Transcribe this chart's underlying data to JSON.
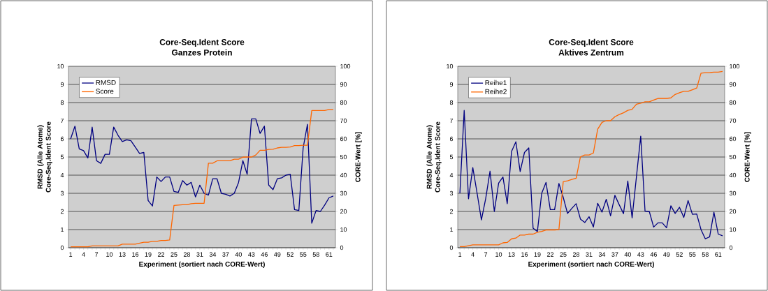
{
  "chart_data": [
    {
      "type": "line",
      "title": "Core-Seq.Ident Score",
      "subtitle": "Ganzes Protein",
      "xlabel": "Experiment (sortiert nach CORE-Wert)",
      "ylabel": "RMSD (Alle Atome) Core-Seq.Ident Score",
      "y2label": "CORE-Wert [%]",
      "categories": [
        "1",
        null,
        null,
        "4",
        null,
        null,
        "7",
        null,
        null,
        "10",
        null,
        null,
        "13",
        null,
        null,
        "16",
        null,
        null,
        "19",
        null,
        null,
        "22",
        null,
        null,
        "25",
        null,
        null,
        "28",
        null,
        null,
        "31",
        null,
        null,
        "34",
        null,
        null,
        "37",
        null,
        null,
        "40",
        null,
        null,
        "43",
        null,
        null,
        "46",
        null,
        null,
        "49",
        null,
        null,
        "52",
        null,
        null,
        "55",
        null,
        null,
        "58",
        null,
        null,
        "61",
        null
      ],
      "ylim": [
        0,
        10
      ],
      "yticks": [
        0,
        1,
        2,
        3,
        4,
        5,
        6,
        7,
        8,
        9,
        10
      ],
      "y2lim": [
        0,
        100
      ],
      "y2ticks": [
        0,
        10,
        20,
        30,
        40,
        50,
        60,
        70,
        80,
        90,
        100
      ],
      "grid": "y",
      "legend": "top left",
      "marker": "none",
      "line_style": "solid",
      "series": [
        {
          "name": "RMSD",
          "color": "#000080",
          "values": [
            6.0,
            6.7,
            5.45,
            5.35,
            4.95,
            6.65,
            4.8,
            4.65,
            5.15,
            5.15,
            6.65,
            6.2,
            5.85,
            5.95,
            5.9,
            5.55,
            5.2,
            5.25,
            2.6,
            2.3,
            3.9,
            3.65,
            3.9,
            3.9,
            3.1,
            3.05,
            3.7,
            3.45,
            3.6,
            2.8,
            3.45,
            3.0,
            2.9,
            3.8,
            3.8,
            3.0,
            2.95,
            2.85,
            3.0,
            3.6,
            4.8,
            4.05,
            7.1,
            7.1,
            6.3,
            6.7,
            3.45,
            3.2,
            3.8,
            3.85,
            4.0,
            4.05,
            2.1,
            2.05,
            5.5,
            6.8,
            1.35,
            2.05,
            2.0,
            2.35,
            2.75,
            2.85
          ]
        },
        {
          "name": "Score",
          "color": "#ff6600",
          "axis": "y2",
          "values": [
            0.5,
            0.5,
            0.5,
            0.5,
            0.5,
            1,
            1,
            1,
            1,
            1,
            1,
            1,
            2,
            2,
            2,
            2,
            2.5,
            3,
            3,
            3.5,
            3.5,
            4,
            4,
            4.3,
            23.3,
            23.5,
            23.7,
            23.7,
            24.3,
            24.5,
            24.5,
            24.5,
            46.6,
            46.6,
            47.9,
            47.9,
            47.9,
            47.9,
            48.8,
            48.8,
            49.9,
            50.0,
            50.0,
            51.1,
            53.7,
            53.7,
            54.2,
            54.3,
            55.0,
            55.3,
            55.3,
            55.5,
            56.3,
            56.3,
            56.5,
            56.5,
            75.6,
            75.6,
            75.6,
            75.6,
            76.2,
            76.2
          ]
        }
      ]
    },
    {
      "type": "line",
      "title": "Core-Seq.Ident Score",
      "subtitle": "Aktives Zentrum",
      "xlabel": "Experiment (sortiert nach CORE-Wert)",
      "ylabel": "RMSD (Alle Atome) Core-Seq.Ident Score",
      "y2label": "CORE-Wert [%]",
      "categories": [
        "1",
        null,
        null,
        "4",
        null,
        null,
        "7",
        null,
        null,
        "10",
        null,
        null,
        "13",
        null,
        null,
        "16",
        null,
        null,
        "19",
        null,
        null,
        "22",
        null,
        null,
        "25",
        null,
        null,
        "28",
        null,
        null,
        "31",
        null,
        null,
        "34",
        null,
        null,
        "37",
        null,
        null,
        "40",
        null,
        null,
        "43",
        null,
        null,
        "46",
        null,
        null,
        "49",
        null,
        null,
        "52",
        null,
        null,
        "55",
        null,
        null,
        "58",
        null,
        null,
        "61",
        null
      ],
      "ylim": [
        0,
        10
      ],
      "yticks": [
        0,
        1,
        2,
        3,
        4,
        5,
        6,
        7,
        8,
        9,
        10
      ],
      "y2lim": [
        0,
        100
      ],
      "y2ticks": [
        0,
        10,
        20,
        30,
        40,
        50,
        60,
        70,
        80,
        90,
        100
      ],
      "grid": "y",
      "legend": "top left",
      "marker": "none",
      "line_style": "solid",
      "series": [
        {
          "name": "Reihe1",
          "color": "#000080",
          "values": [
            3.0,
            7.57,
            2.7,
            4.42,
            3.0,
            1.53,
            2.72,
            4.22,
            2.0,
            3.56,
            3.9,
            2.43,
            5.31,
            5.84,
            4.2,
            5.25,
            5.5,
            1.08,
            0.89,
            3.0,
            3.6,
            2.1,
            2.1,
            3.54,
            2.78,
            1.89,
            2.17,
            2.43,
            1.58,
            1.39,
            1.71,
            1.14,
            2.45,
            1.96,
            2.67,
            1.76,
            2.89,
            2.37,
            1.88,
            3.68,
            1.65,
            3.9,
            6.15,
            2.02,
            1.99,
            1.14,
            1.37,
            1.37,
            1.1,
            2.31,
            1.89,
            2.23,
            1.67,
            2.6,
            1.84,
            1.86,
            1.0,
            0.49,
            0.6,
            1.96,
            0.75,
            0.66
          ]
        },
        {
          "name": "Reihe2",
          "color": "#ff6600",
          "axis": "y2",
          "values": [
            0.6,
            0.6,
            1.1,
            1.6,
            1.6,
            1.6,
            1.6,
            1.6,
            1.6,
            1.6,
            2.7,
            2.9,
            4.9,
            5.3,
            7.0,
            7.0,
            7.5,
            7.5,
            8.5,
            9.0,
            9.8,
            9.8,
            9.8,
            10.0,
            36.4,
            36.9,
            37.6,
            38.3,
            50.1,
            51.1,
            51.1,
            52.2,
            65.3,
            69.1,
            70.0,
            70.0,
            72.2,
            73.4,
            74.4,
            75.7,
            76.3,
            79.1,
            79.7,
            80.4,
            80.4,
            81.4,
            82.3,
            82.3,
            82.3,
            82.6,
            84.5,
            85.4,
            86.2,
            86.2,
            87.1,
            88.0,
            96.2,
            96.5,
            96.5,
            96.8,
            96.8,
            97.2
          ]
        }
      ]
    }
  ]
}
